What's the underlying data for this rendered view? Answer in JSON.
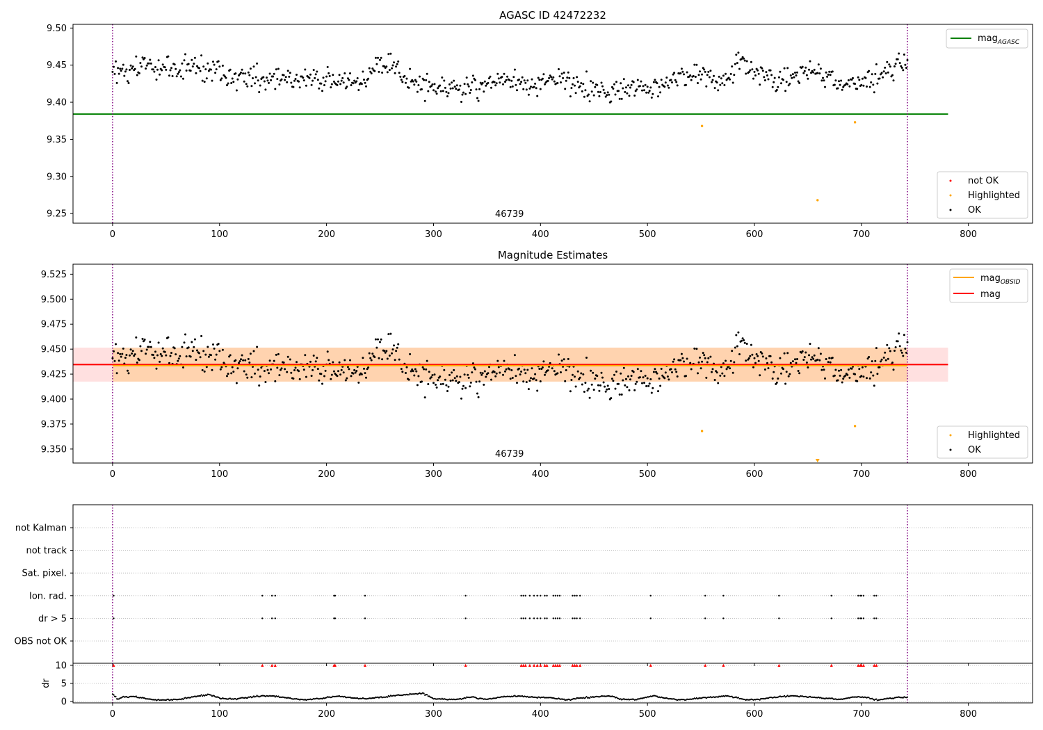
{
  "chart_data": [
    {
      "type": "scatter",
      "title": "AGASC ID 42472232",
      "xlim": [
        -37,
        860
      ],
      "ylim": [
        9.237,
        9.505
      ],
      "xticks": [
        0,
        100,
        200,
        300,
        400,
        500,
        600,
        700,
        800
      ],
      "yticks": [
        9.25,
        9.3,
        9.35,
        9.4,
        9.45,
        9.5
      ],
      "ytick_labels": [
        "9.25",
        "9.30",
        "9.35",
        "9.40",
        "9.45",
        "9.50"
      ],
      "obs_boundaries": [
        0,
        743
      ],
      "obsid_label": {
        "text": "46739",
        "x": 371
      },
      "reference_lines": [
        {
          "name": "mag_AGASC",
          "label": "mag",
          "label_sub": "AGASC",
          "y": 9.384,
          "x_range": [
            -37,
            781
          ],
          "color": "#008000"
        }
      ],
      "highlighted_points": [
        [
          551,
          9.368
        ],
        [
          659,
          9.268
        ],
        [
          694,
          9.373
        ]
      ],
      "ok_trend": [
        [
          0,
          9.438
        ],
        [
          30,
          9.452
        ],
        [
          60,
          9.445
        ],
        [
          90,
          9.448
        ],
        [
          120,
          9.43
        ],
        [
          150,
          9.432
        ],
        [
          180,
          9.428
        ],
        [
          210,
          9.428
        ],
        [
          240,
          9.435
        ],
        [
          255,
          9.458
        ],
        [
          275,
          9.428
        ],
        [
          300,
          9.422
        ],
        [
          330,
          9.415
        ],
        [
          360,
          9.43
        ],
        [
          390,
          9.425
        ],
        [
          420,
          9.43
        ],
        [
          450,
          9.413
        ],
        [
          480,
          9.415
        ],
        [
          510,
          9.42
        ],
        [
          540,
          9.438
        ],
        [
          570,
          9.43
        ],
        [
          590,
          9.452
        ],
        [
          620,
          9.425
        ],
        [
          650,
          9.445
        ],
        [
          680,
          9.425
        ],
        [
          700,
          9.425
        ],
        [
          720,
          9.438
        ],
        [
          743,
          9.455
        ]
      ],
      "legend_lines": {
        "position": "upper-right",
        "entries": [
          {
            "label": "mag",
            "sub": "AGASC",
            "color": "#008000"
          }
        ]
      },
      "legend_points": {
        "position": "lower-right",
        "entries": [
          {
            "label": "not OK",
            "color": "#ff0000"
          },
          {
            "label": "Highlighted",
            "color": "#ffa500"
          },
          {
            "label": "OK",
            "color": "#000000"
          }
        ]
      }
    },
    {
      "type": "scatter",
      "title": "Magnitude Estimates",
      "xlim": [
        -37,
        860
      ],
      "ylim": [
        9.336,
        9.535
      ],
      "xticks": [
        0,
        100,
        200,
        300,
        400,
        500,
        600,
        700,
        800
      ],
      "yticks": [
        9.35,
        9.375,
        9.4,
        9.425,
        9.45,
        9.475,
        9.5,
        9.525
      ],
      "ytick_labels": [
        "9.350",
        "9.375",
        "9.400",
        "9.425",
        "9.450",
        "9.475",
        "9.500",
        "9.525"
      ],
      "obs_boundaries": [
        0,
        743
      ],
      "obsid_label": {
        "text": "46739",
        "x": 371
      },
      "mag": {
        "value": 9.4345,
        "band": [
          9.4175,
          9.4515
        ],
        "x_range": [
          -37,
          781
        ],
        "color": "#ff0000"
      },
      "mag_obsid": {
        "value": 9.4335,
        "band": [
          9.4175,
          9.4515
        ],
        "x_range": [
          0,
          743
        ],
        "color": "#ffa500"
      },
      "highlighted_points": [
        [
          551,
          9.368
        ],
        [
          694,
          9.373
        ]
      ],
      "offscale_marker": {
        "x": 659,
        "color": "#ffa500"
      },
      "ok_trend": [
        [
          0,
          9.438
        ],
        [
          30,
          9.452
        ],
        [
          60,
          9.445
        ],
        [
          90,
          9.448
        ],
        [
          120,
          9.43
        ],
        [
          150,
          9.432
        ],
        [
          180,
          9.428
        ],
        [
          210,
          9.428
        ],
        [
          240,
          9.435
        ],
        [
          255,
          9.458
        ],
        [
          275,
          9.428
        ],
        [
          300,
          9.422
        ],
        [
          330,
          9.415
        ],
        [
          360,
          9.43
        ],
        [
          390,
          9.425
        ],
        [
          420,
          9.43
        ],
        [
          450,
          9.413
        ],
        [
          480,
          9.415
        ],
        [
          510,
          9.42
        ],
        [
          540,
          9.438
        ],
        [
          570,
          9.43
        ],
        [
          590,
          9.452
        ],
        [
          620,
          9.425
        ],
        [
          650,
          9.445
        ],
        [
          680,
          9.425
        ],
        [
          700,
          9.425
        ],
        [
          720,
          9.438
        ],
        [
          743,
          9.455
        ]
      ],
      "legend_lines": {
        "position": "upper-right",
        "entries": [
          {
            "label": "mag",
            "sub": "OBSID",
            "color": "#ffa500"
          },
          {
            "label": "mag",
            "sub": "",
            "color": "#ff0000"
          }
        ]
      },
      "legend_points": {
        "position": "lower-right",
        "entries": [
          {
            "label": "Highlighted",
            "color": "#ffa500"
          },
          {
            "label": "OK",
            "color": "#000000"
          }
        ]
      }
    },
    {
      "type": "scatter",
      "xlim": [
        -37,
        860
      ],
      "xticks": [
        0,
        100,
        200,
        300,
        400,
        500,
        600,
        700,
        800
      ],
      "obs_boundaries": [
        0,
        743
      ],
      "flag_rows": [
        "not Kalman",
        "not track",
        "Sat. pixel.",
        "Ion. rad.",
        "dr > 5",
        "OBS not OK"
      ],
      "flag_x": [
        1,
        140,
        149,
        152,
        207,
        208,
        236,
        330,
        382,
        384,
        386,
        390,
        394,
        397,
        400,
        404,
        406,
        412,
        414,
        416,
        418,
        430,
        432,
        434,
        437,
        503,
        554,
        571,
        623,
        672,
        697,
        699,
        700,
        702,
        712,
        714
      ],
      "flag_rows_with_points": [
        "Ion. rad.",
        "dr > 5"
      ],
      "dr": {
        "ylabel": "dr",
        "ylim": [
          0,
          10
        ],
        "yticks": [
          0,
          5,
          10
        ],
        "ytick_labels": [
          "0",
          "5",
          "10"
        ],
        "cap_value": 10,
        "trend": [
          [
            0,
            2.0
          ],
          [
            5,
            0.6
          ],
          [
            10,
            1.3
          ],
          [
            20,
            1.4
          ],
          [
            35,
            0.6
          ],
          [
            50,
            0.4
          ],
          [
            65,
            0.7
          ],
          [
            80,
            1.5
          ],
          [
            90,
            2.0
          ],
          [
            100,
            0.9
          ],
          [
            115,
            0.7
          ],
          [
            130,
            1.2
          ],
          [
            140,
            1.6
          ],
          [
            150,
            1.5
          ],
          [
            165,
            0.9
          ],
          [
            180,
            0.4
          ],
          [
            200,
            1.0
          ],
          [
            210,
            1.5
          ],
          [
            225,
            1.0
          ],
          [
            240,
            0.8
          ],
          [
            260,
            1.5
          ],
          [
            275,
            1.9
          ],
          [
            290,
            2.3
          ],
          [
            300,
            0.8
          ],
          [
            320,
            0.5
          ],
          [
            335,
            1.2
          ],
          [
            350,
            0.6
          ],
          [
            365,
            1.3
          ],
          [
            380,
            1.5
          ],
          [
            395,
            1.2
          ],
          [
            410,
            1.0
          ],
          [
            425,
            0.4
          ],
          [
            435,
            0.9
          ],
          [
            450,
            1.2
          ],
          [
            465,
            1.6
          ],
          [
            475,
            0.6
          ],
          [
            490,
            0.5
          ],
          [
            505,
            1.6
          ],
          [
            515,
            1.0
          ],
          [
            530,
            0.4
          ],
          [
            545,
            0.8
          ],
          [
            560,
            1.2
          ],
          [
            575,
            1.6
          ],
          [
            590,
            0.5
          ],
          [
            605,
            0.6
          ],
          [
            620,
            1.2
          ],
          [
            635,
            1.6
          ],
          [
            650,
            1.3
          ],
          [
            665,
            0.9
          ],
          [
            680,
            0.6
          ],
          [
            695,
            1.3
          ],
          [
            705,
            1.1
          ],
          [
            715,
            0.4
          ],
          [
            730,
            1.0
          ],
          [
            743,
            1.2
          ]
        ]
      }
    }
  ]
}
